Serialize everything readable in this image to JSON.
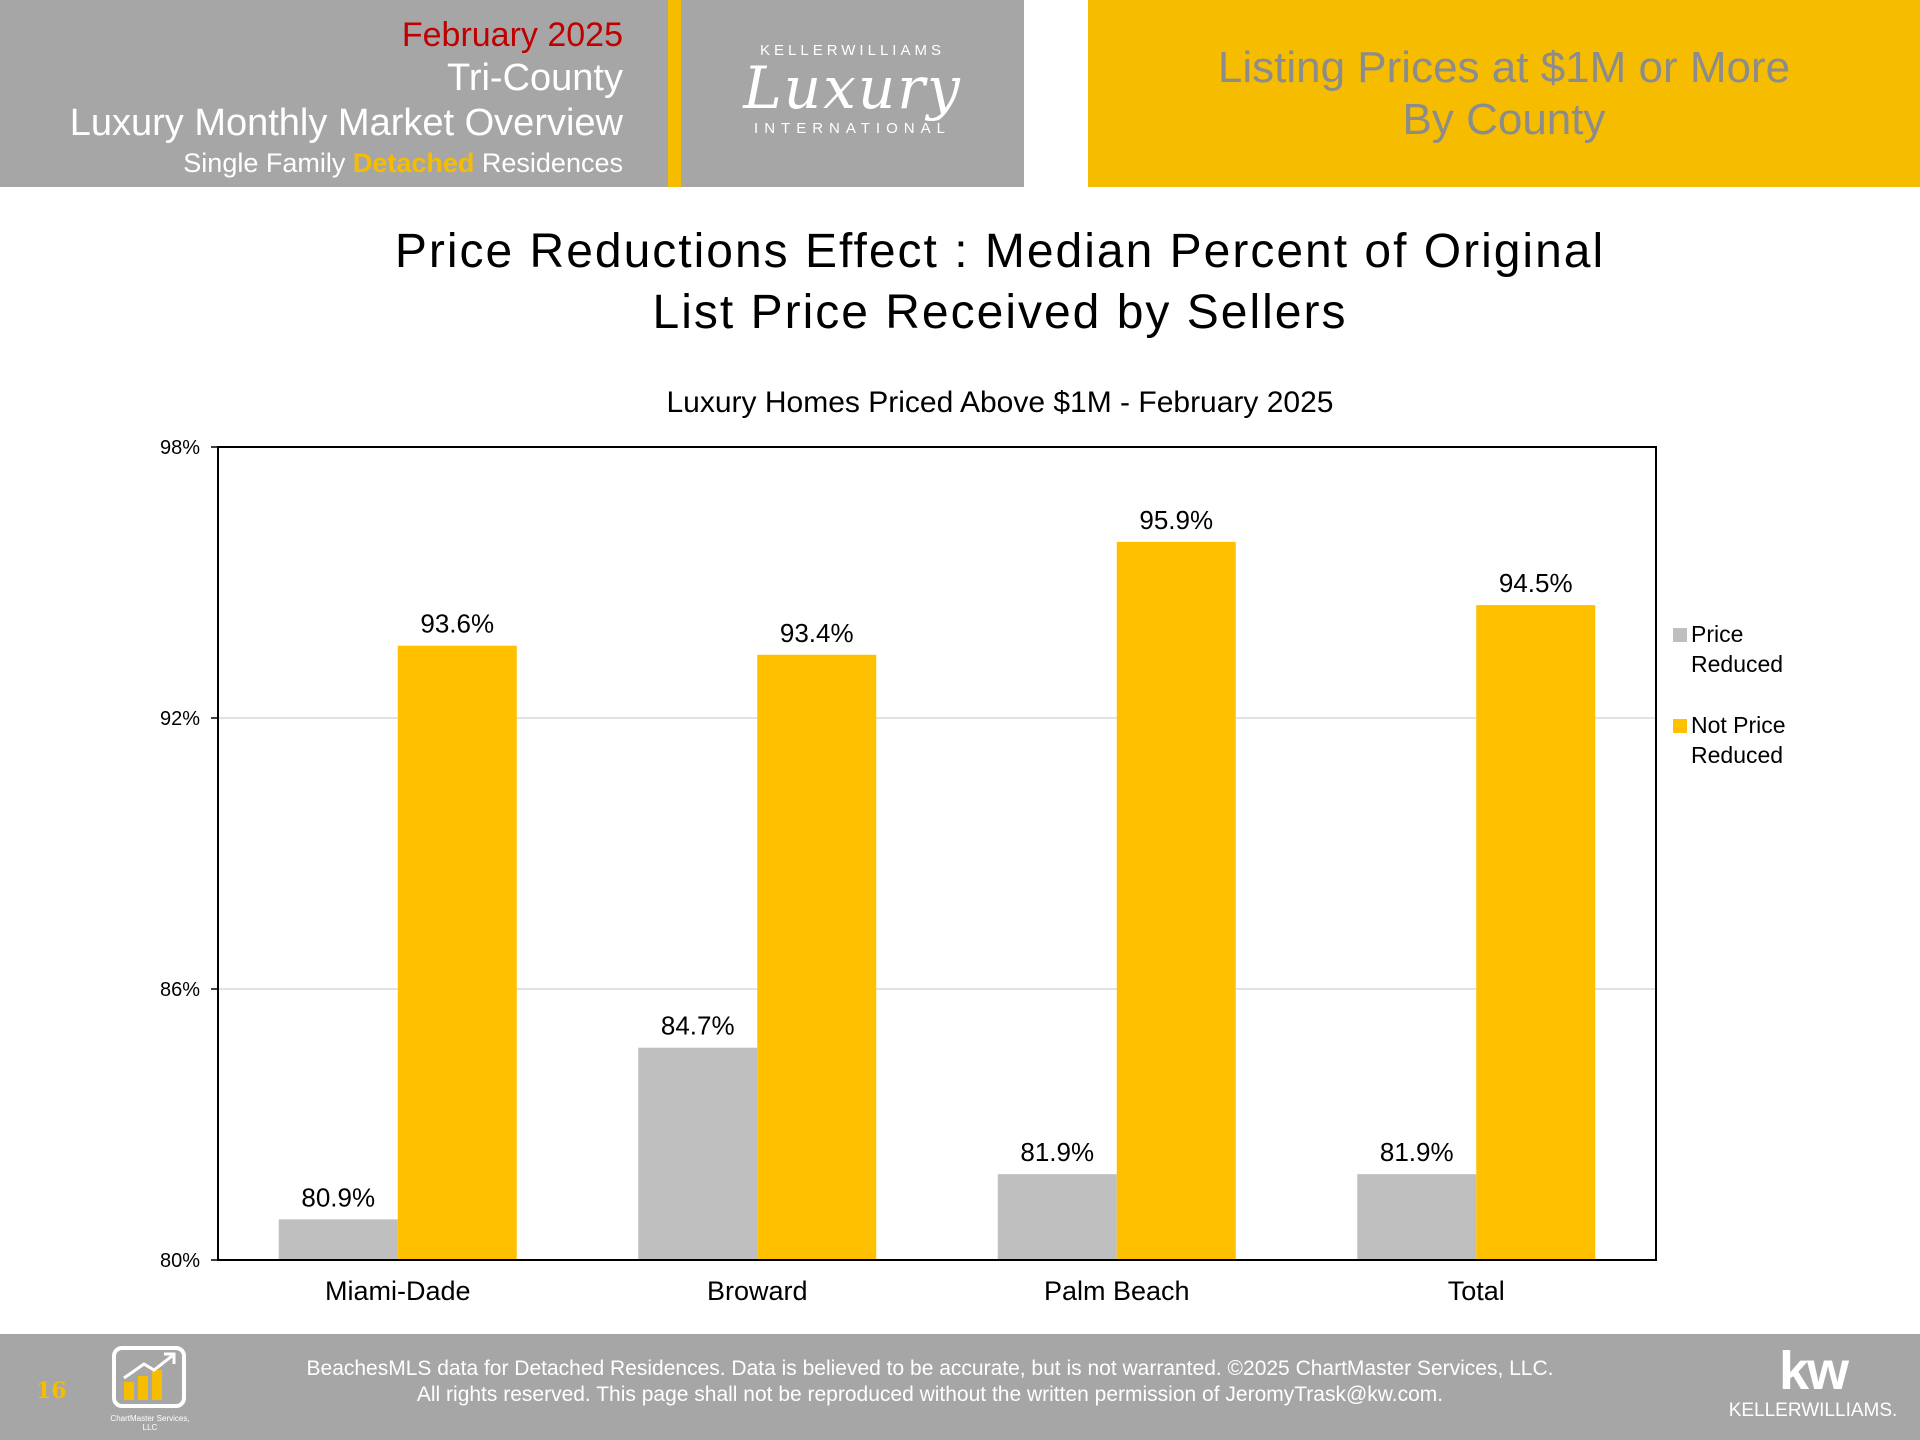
{
  "header": {
    "date": "February 2025",
    "region": "Tri-County",
    "overview": "Luxury Monthly Market Overview",
    "residence_prefix": "Single Family ",
    "residence_accent": "Detached",
    "residence_suffix": " Residences",
    "logo_top": "KELLERWILLIAMS",
    "logo_script": "Luxury",
    "logo_bottom": "INTERNATIONAL",
    "right_line1": "Listing Prices at $1M or More",
    "right_line2": "By County"
  },
  "colors": {
    "accent": "#f6bd00",
    "header_gray": "#a6a6a6",
    "date_red": "#c00000",
    "price_reduced": "#bfbfbf",
    "not_price_reduced": "#ffc000"
  },
  "chart_data": {
    "type": "bar",
    "title_lines": [
      "Price Reductions Effect : Median Percent of Original",
      "List Price Received by Sellers"
    ],
    "subtitle": "Luxury Homes Priced Above $1M - February 2025",
    "categories": [
      "Miami-Dade",
      "Broward",
      "Palm Beach",
      "Total"
    ],
    "series": [
      {
        "name_lines": [
          "Price",
          "Reduced"
        ],
        "values": [
          80.9,
          84.7,
          81.9,
          81.9
        ],
        "labels": [
          "80.9%",
          "84.7%",
          "81.9%",
          "81.9%"
        ],
        "color": "#bfbfbf"
      },
      {
        "name_lines": [
          "Not Price",
          "Reduced"
        ],
        "values": [
          93.6,
          93.4,
          95.9,
          94.5
        ],
        "labels": [
          "93.6%",
          "93.4%",
          "95.9%",
          "94.5%"
        ],
        "color": "#ffc000"
      }
    ],
    "ylim": [
      80,
      98
    ],
    "yticks": [
      80,
      86,
      92,
      98
    ],
    "ytick_labels": [
      "80%",
      "86%",
      "92%",
      "98%"
    ],
    "grid": true,
    "legend_position": "right"
  },
  "footer": {
    "page_number": "16",
    "line1": "BeachesMLS data for Detached Residences.  Data is believed to be accurate, but is not warranted.   ©2025  ChartMaster Services, LLC.",
    "line2": "All rights reserved. This page shall not be reproduced without the written permission of JeromyTrask@kw.com.",
    "chartmaster_label": "ChartMaster Services, LLC",
    "kw_logo_big": "kw",
    "kw_logo_small": "KELLERWILLIAMS."
  }
}
